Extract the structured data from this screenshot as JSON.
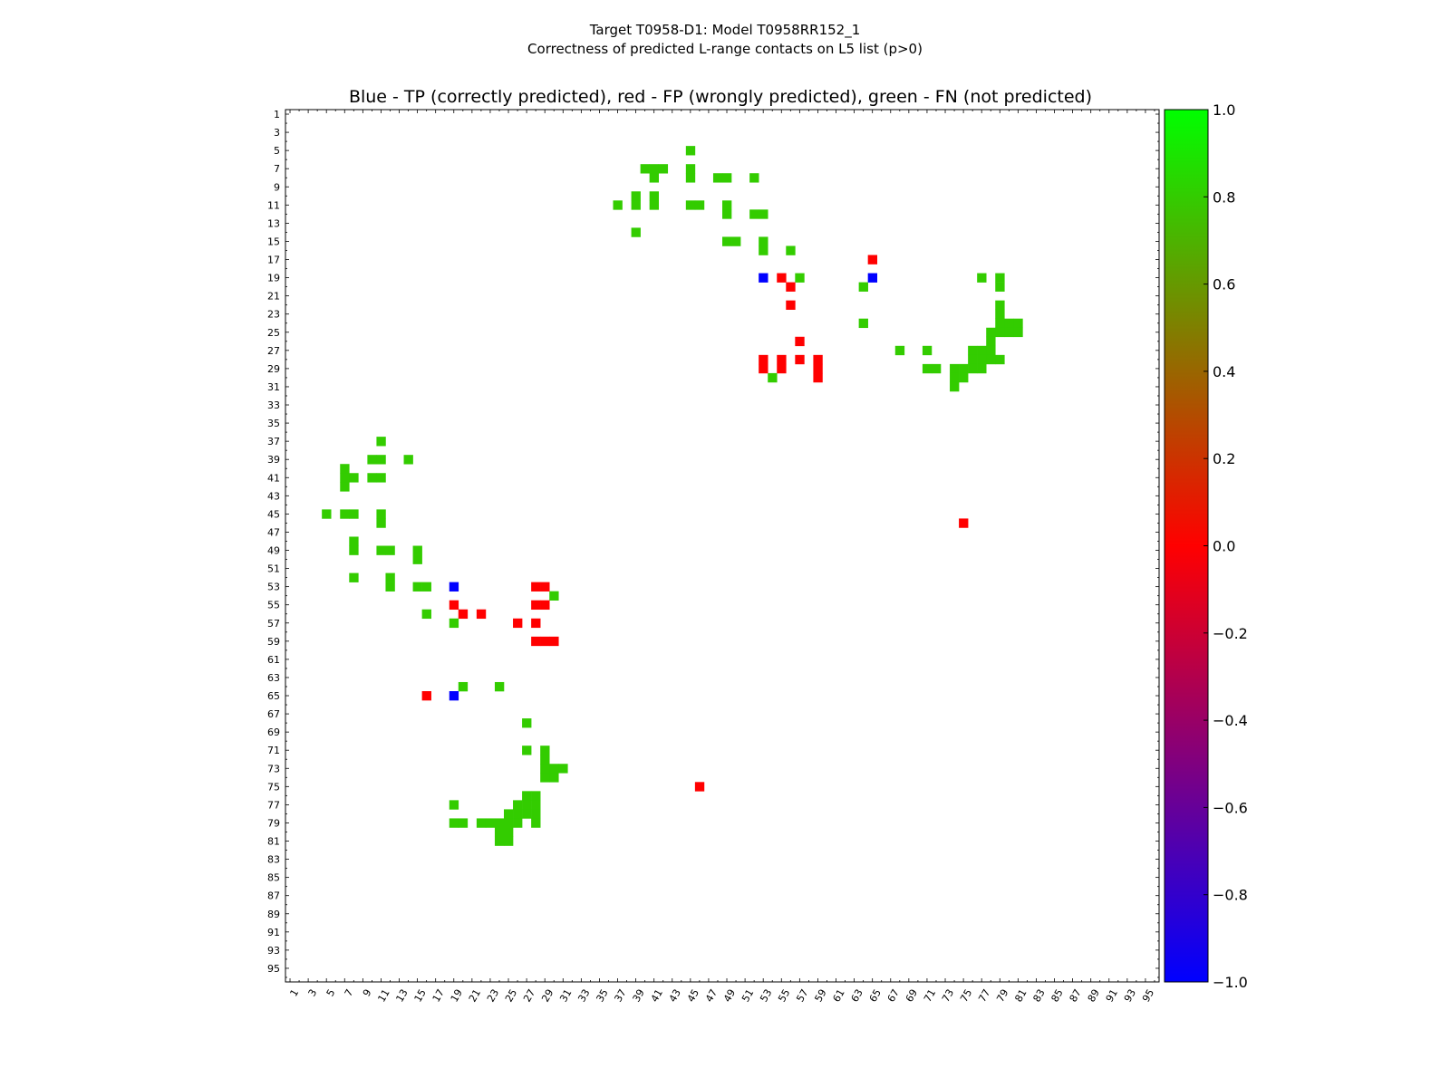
{
  "chart_data": {
    "type": "heatmap",
    "suptitle_line1": "Target T0958-D1: Model T0958RR152_1",
    "suptitle_line2": "Correctness of predicted L-range contacts on L5 list (p>0)",
    "title": "Blue - TP (correctly predicted), red - FP (wrongly predicted), green - FN (not predicted)",
    "xlabel": "",
    "ylabel": "",
    "xlim": [
      1,
      96
    ],
    "ylim": [
      1,
      96
    ],
    "x_ticks": [
      1,
      3,
      5,
      7,
      9,
      11,
      13,
      15,
      17,
      19,
      21,
      23,
      25,
      27,
      29,
      31,
      33,
      35,
      37,
      39,
      41,
      43,
      45,
      47,
      49,
      51,
      53,
      55,
      57,
      59,
      61,
      63,
      65,
      67,
      69,
      71,
      73,
      75,
      77,
      79,
      81,
      83,
      85,
      87,
      89,
      91,
      93,
      95
    ],
    "y_ticks": [
      1,
      3,
      5,
      7,
      9,
      11,
      13,
      15,
      17,
      19,
      21,
      23,
      25,
      27,
      29,
      31,
      33,
      35,
      37,
      39,
      41,
      43,
      45,
      47,
      49,
      51,
      53,
      55,
      57,
      59,
      61,
      63,
      65,
      67,
      69,
      71,
      73,
      75,
      77,
      79,
      81,
      83,
      85,
      87,
      89,
      91,
      93,
      95
    ],
    "grid": false,
    "colorbar": {
      "min": -1.0,
      "max": 1.0,
      "ticks": [
        "1.0",
        "0.8",
        "0.6",
        "0.4",
        "0.2",
        "0.0",
        "−0.2",
        "−0.4",
        "−0.6",
        "−0.8",
        "−1.0"
      ],
      "tick_values": [
        1.0,
        0.8,
        0.6,
        0.4,
        0.2,
        0.0,
        -0.2,
        -0.4,
        -0.6,
        -0.8,
        -1.0
      ],
      "colormap": [
        "#0000ff",
        "#ff0000",
        "#00ff00"
      ]
    },
    "legend_colors": {
      "TP": "#0000ff",
      "FP": "#ff0000",
      "FN": "#33cc00"
    },
    "cells": {
      "TP": [
        [
          53,
          19
        ],
        [
          65,
          19
        ],
        [
          19,
          53
        ],
        [
          19,
          65
        ]
      ],
      "FP": [
        [
          65,
          17
        ],
        [
          55,
          19
        ],
        [
          56,
          20
        ],
        [
          56,
          22
        ],
        [
          57,
          26
        ],
        [
          57,
          28
        ],
        [
          53,
          28
        ],
        [
          53,
          29
        ],
        [
          55,
          28
        ],
        [
          55,
          29
        ],
        [
          59,
          28
        ],
        [
          59,
          29
        ],
        [
          59,
          30
        ],
        [
          75,
          46
        ],
        [
          28,
          53
        ],
        [
          29,
          53
        ],
        [
          19,
          55
        ],
        [
          28,
          55
        ],
        [
          29,
          55
        ],
        [
          20,
          56
        ],
        [
          22,
          56
        ],
        [
          26,
          57
        ],
        [
          28,
          57
        ],
        [
          28,
          59
        ],
        [
          29,
          59
        ],
        [
          30,
          59
        ],
        [
          16,
          65
        ],
        [
          46,
          75
        ]
      ],
      "FN": [
        [
          45,
          5
        ],
        [
          40,
          7
        ],
        [
          41,
          7
        ],
        [
          42,
          7
        ],
        [
          45,
          7
        ],
        [
          41,
          8
        ],
        [
          45,
          8
        ],
        [
          48,
          8
        ],
        [
          49,
          8
        ],
        [
          52,
          8
        ],
        [
          37,
          11
        ],
        [
          39,
          10
        ],
        [
          39,
          11
        ],
        [
          41,
          10
        ],
        [
          41,
          11
        ],
        [
          45,
          11
        ],
        [
          46,
          11
        ],
        [
          49,
          11
        ],
        [
          49,
          12
        ],
        [
          52,
          12
        ],
        [
          53,
          12
        ],
        [
          39,
          14
        ],
        [
          49,
          15
        ],
        [
          50,
          15
        ],
        [
          53,
          15
        ],
        [
          53,
          16
        ],
        [
          56,
          16
        ],
        [
          57,
          19
        ],
        [
          64,
          20
        ],
        [
          64,
          24
        ],
        [
          77,
          19
        ],
        [
          79,
          19
        ],
        [
          79,
          20
        ],
        [
          79,
          22
        ],
        [
          79,
          23
        ],
        [
          79,
          24
        ],
        [
          80,
          24
        ],
        [
          81,
          24
        ],
        [
          80,
          25
        ],
        [
          81,
          25
        ],
        [
          78,
          25
        ],
        [
          79,
          25
        ],
        [
          78,
          26
        ],
        [
          68,
          27
        ],
        [
          71,
          27
        ],
        [
          76,
          27
        ],
        [
          77,
          27
        ],
        [
          78,
          27
        ],
        [
          76,
          28
        ],
        [
          77,
          28
        ],
        [
          78,
          28
        ],
        [
          79,
          28
        ],
        [
          71,
          29
        ],
        [
          72,
          29
        ],
        [
          74,
          29
        ],
        [
          75,
          29
        ],
        [
          76,
          29
        ],
        [
          77,
          29
        ],
        [
          74,
          30
        ],
        [
          75,
          30
        ],
        [
          74,
          31
        ],
        [
          54,
          30
        ],
        [
          11,
          37
        ],
        [
          10,
          39
        ],
        [
          11,
          39
        ],
        [
          14,
          39
        ],
        [
          7,
          40
        ],
        [
          7,
          41
        ],
        [
          8,
          41
        ],
        [
          10,
          41
        ],
        [
          11,
          41
        ],
        [
          7,
          42
        ],
        [
          5,
          45
        ],
        [
          7,
          45
        ],
        [
          8,
          45
        ],
        [
          11,
          45
        ],
        [
          11,
          46
        ],
        [
          8,
          48
        ],
        [
          8,
          49
        ],
        [
          11,
          49
        ],
        [
          12,
          49
        ],
        [
          15,
          49
        ],
        [
          15,
          50
        ],
        [
          8,
          52
        ],
        [
          12,
          52
        ],
        [
          12,
          53
        ],
        [
          15,
          53
        ],
        [
          16,
          53
        ],
        [
          30,
          54
        ],
        [
          16,
          56
        ],
        [
          19,
          57
        ],
        [
          20,
          64
        ],
        [
          24,
          64
        ],
        [
          27,
          68
        ],
        [
          27,
          71
        ],
        [
          29,
          71
        ],
        [
          29,
          72
        ],
        [
          29,
          73
        ],
        [
          30,
          73
        ],
        [
          31,
          73
        ],
        [
          29,
          74
        ],
        [
          30,
          74
        ],
        [
          27,
          76
        ],
        [
          28,
          76
        ],
        [
          27,
          77
        ],
        [
          28,
          77
        ],
        [
          19,
          77
        ],
        [
          26,
          77
        ],
        [
          19,
          79
        ],
        [
          20,
          79
        ],
        [
          22,
          79
        ],
        [
          23,
          79
        ],
        [
          24,
          79
        ],
        [
          25,
          79
        ],
        [
          26,
          79
        ],
        [
          25,
          78
        ],
        [
          26,
          78
        ],
        [
          27,
          78
        ],
        [
          28,
          78
        ],
        [
          28,
          79
        ],
        [
          24,
          80
        ],
        [
          25,
          80
        ],
        [
          24,
          81
        ],
        [
          25,
          81
        ]
      ]
    }
  }
}
